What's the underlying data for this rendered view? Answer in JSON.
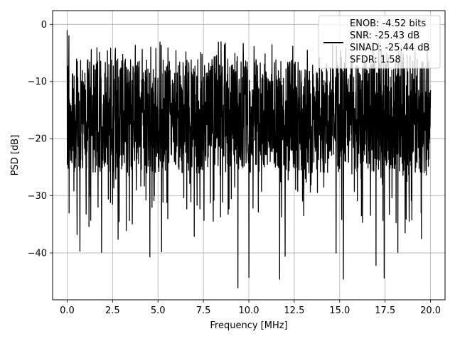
{
  "chart_data": {
    "type": "line",
    "xlabel": "Frequency [MHz]",
    "ylabel": "PSD [dB]",
    "xlim": [
      -0.8,
      20.8
    ],
    "ylim": [
      -48.2,
      2.4
    ],
    "xticks": [
      0.0,
      2.5,
      5.0,
      7.5,
      10.0,
      12.5,
      15.0,
      17.5,
      20.0
    ],
    "xtick_labels": [
      "0.0",
      "2.5",
      "5.0",
      "7.5",
      "10.0",
      "12.5",
      "15.0",
      "17.5",
      "20.0"
    ],
    "yticks": [
      0,
      -10,
      -20,
      -30,
      -40
    ],
    "ytick_labels": [
      "0",
      "−10",
      "−20",
      "−30",
      "−40"
    ],
    "grid": true,
    "legend_position": "top-right",
    "series": [
      {
        "label_lines": [
          "ENOB: -4.52 bits",
          "SNR: -25.43 dB",
          "SINAD: -25.44 dB",
          "SFDR: 1.58"
        ],
        "color": "#000000",
        "x_range": [
          0.0,
          20.0
        ],
        "num_points": 2048,
        "note_shape": "dense noise floor between about -7 and -25 dB, peaks near -3 dB, deep dips toward -46 dB",
        "x": [
          0.0,
          0.05,
          0.1,
          0.55,
          0.7,
          1.05,
          1.2,
          1.9,
          2.5,
          2.8,
          3.25,
          4.55,
          5.2,
          7.0,
          9.4,
          10.0,
          11.7,
          12.0,
          14.8,
          15.2,
          16.2,
          17.0,
          17.45,
          18.2,
          18.6,
          19.5
        ],
        "y": [
          -1.0,
          -24.0,
          -2.0,
          -36.8,
          -39.7,
          -33.2,
          -35.4,
          -39.9,
          -31.5,
          -37.6,
          -36.1,
          -40.7,
          -39.8,
          -37.1,
          -46.1,
          -44.3,
          -44.6,
          -40.6,
          -40.0,
          -44.6,
          -33.5,
          -42.2,
          -44.4,
          -39.9,
          -36.5,
          -37.5
        ]
      }
    ]
  }
}
